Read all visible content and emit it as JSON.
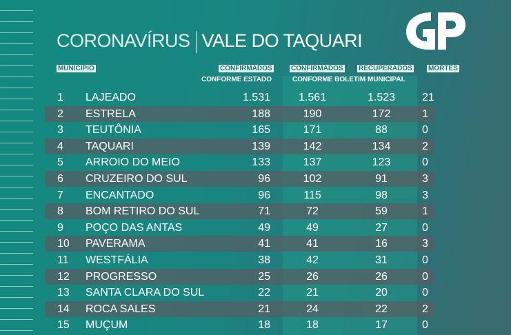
{
  "title": {
    "left": "CORONAVÍRUS",
    "right": "VALE DO TAQUARI"
  },
  "logo": "GP",
  "headers": {
    "municipio": "MUNICÍPIO",
    "confirmados_estado": "CONFIRMADOS",
    "conforme_estado": "CONFORME ESTADO",
    "confirmados_boletim": "CONFIRMADOS",
    "recuperados": "RECUPERADOS",
    "conforme_boletim": "CONFORME BOLETIM MUNICIPAL",
    "mortes": "MORTES"
  },
  "rows": [
    {
      "n": "1",
      "name": "LAJEADO",
      "est": "1.531",
      "bol": "1.561",
      "rec": "1.523",
      "mor": "21"
    },
    {
      "n": "2",
      "name": "ESTRELA",
      "est": "188",
      "bol": "190",
      "rec": "172",
      "mor": "1"
    },
    {
      "n": "3",
      "name": "TEUTÔNIA",
      "est": "165",
      "bol": "171",
      "rec": "88",
      "mor": "0"
    },
    {
      "n": "4",
      "name": "TAQUARI",
      "est": "139",
      "bol": "142",
      "rec": "134",
      "mor": "2"
    },
    {
      "n": "5",
      "name": "ARROIO DO MEIO",
      "est": "133",
      "bol": "137",
      "rec": "123",
      "mor": "0"
    },
    {
      "n": "6",
      "name": "CRUZEIRO DO SUL",
      "est": "96",
      "bol": "102",
      "rec": "91",
      "mor": "3"
    },
    {
      "n": "7",
      "name": "ENCANTADO",
      "est": "96",
      "bol": "115",
      "rec": "98",
      "mor": "3"
    },
    {
      "n": "8",
      "name": "BOM RETIRO DO SUL",
      "est": "71",
      "bol": "72",
      "rec": "59",
      "mor": "1"
    },
    {
      "n": "9",
      "name": "POÇO DAS ANTAS",
      "est": "49",
      "bol": "49",
      "rec": "27",
      "mor": "0"
    },
    {
      "n": "10",
      "name": "PAVERAMA",
      "est": "41",
      "bol": "41",
      "rec": "16",
      "mor": "3"
    },
    {
      "n": "11",
      "name": "WESTFÁLIA",
      "est": "38",
      "bol": "42",
      "rec": "31",
      "mor": "0"
    },
    {
      "n": "12",
      "name": "PROGRESSO",
      "est": "25",
      "bol": "26",
      "rec": "26",
      "mor": "0"
    },
    {
      "n": "13",
      "name": "SANTA CLARA DO SUL",
      "est": "22",
      "bol": "21",
      "rec": "20",
      "mor": "0"
    },
    {
      "n": "14",
      "name": "ROCA SALES",
      "est": "21",
      "bol": "24",
      "rec": "22",
      "mor": "2"
    },
    {
      "n": "15",
      "name": "MUÇUM",
      "est": "18",
      "bol": "18",
      "rec": "17",
      "mor": "0"
    }
  ]
}
